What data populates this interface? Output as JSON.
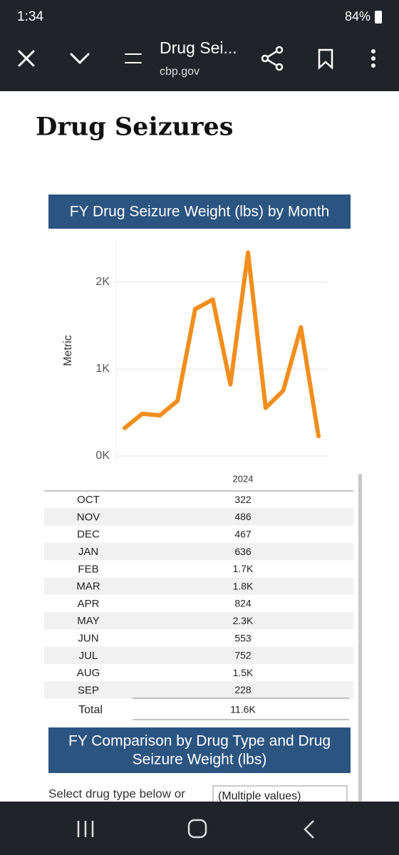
{
  "status_bar": {
    "time": "1:34",
    "battery": "84%"
  },
  "browser": {
    "title": "Drug Sei...",
    "url": "cbp.gov"
  },
  "page": {
    "heading": "Drug Seizures"
  },
  "chart_data": {
    "type": "line",
    "title": "FY Drug Seizure Weight (lbs) by Month",
    "y_label": "Metric",
    "categories": [
      "OCT",
      "NOV",
      "DEC",
      "JAN",
      "FEB",
      "MAR",
      "APR",
      "MAY",
      "JUN",
      "JUL",
      "AUG",
      "SEP"
    ],
    "values": [
      322,
      486,
      467,
      636,
      1690,
      1800,
      824,
      2340,
      553,
      752,
      1480,
      228
    ],
    "value_labels": [
      "322",
      "486",
      "467",
      "636",
      "1.7K",
      "1.8K",
      "824",
      "2.3K",
      "553",
      "752",
      "1.5K",
      "228"
    ],
    "color": "#f28e1c",
    "ylim": [
      0,
      2500
    ],
    "yticks": [
      {
        "value": 0,
        "label": "0K"
      },
      {
        "value": 1000,
        "label": "1K"
      },
      {
        "value": 2000,
        "label": "2K"
      }
    ],
    "grid": true,
    "column_header": "2024",
    "total_label": "Total",
    "total_value": "11.6K"
  },
  "section2": {
    "title_line1": "FY Comparison by Drug Type and Drug",
    "title_line2": "Seizure Weight (lbs)"
  },
  "filter": {
    "label": "Select drug type below or",
    "value": "(Multiple values)"
  }
}
